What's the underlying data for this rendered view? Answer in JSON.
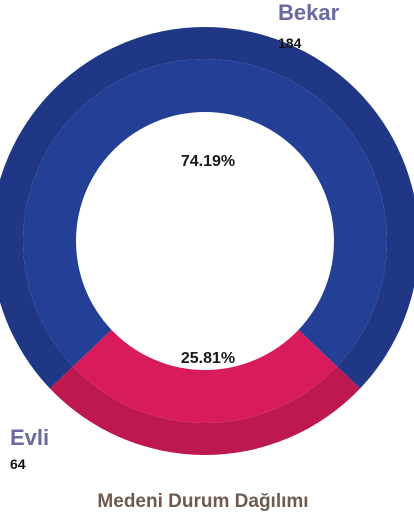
{
  "chart_data": {
    "type": "pie",
    "title": "Medeni Durum Dağılımı",
    "categories": [
      "Bekar",
      "Evli"
    ],
    "values": [
      184,
      64
    ],
    "percent_labels": [
      "74.19%",
      "25.81%"
    ],
    "colors": [
      "#233f96",
      "#d81b5b"
    ],
    "legend": "none"
  },
  "colors": {
    "category_label": "#6a6aa0",
    "title": "#6e5a4e"
  }
}
